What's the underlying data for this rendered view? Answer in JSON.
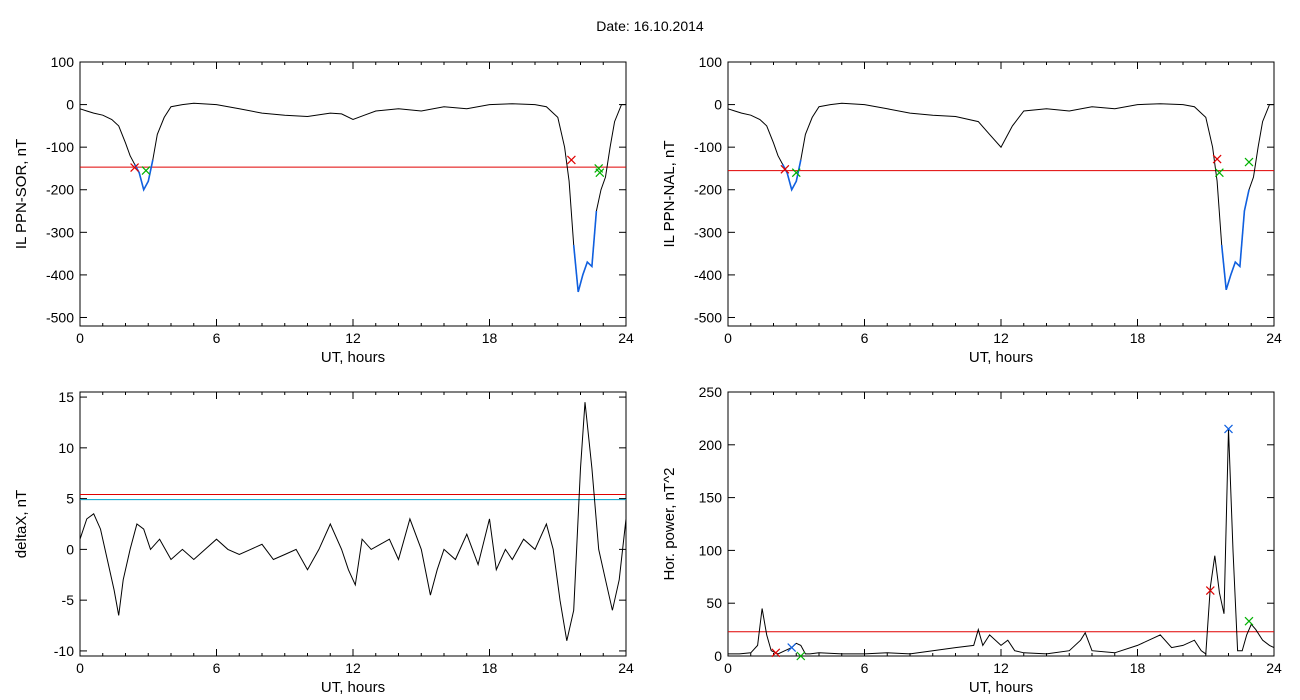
{
  "header": {
    "title": "Date:  16.10.2014"
  },
  "colors": {
    "trace": "#000000",
    "threshold_red": "#e00000",
    "threshold_cyan": "#00a0c8",
    "highlight_blue": "#1060e0",
    "marker_red": "#e00000",
    "marker_green": "#00b000",
    "marker_blue": "#1060e0"
  },
  "chart_data": [
    {
      "id": "ppn-sor",
      "type": "line",
      "xlabel": "UT, hours",
      "ylabel": "IL PPN-SOR, nT",
      "xlim": [
        0,
        24
      ],
      "ylim": [
        -520,
        100
      ],
      "xticks": [
        0,
        6,
        12,
        18,
        24
      ],
      "yticks": [
        100,
        0,
        -100,
        -200,
        -300,
        -400,
        -500
      ],
      "series": [
        {
          "values_x": [
            0,
            0.3,
            0.6,
            1.0,
            1.4,
            1.7,
            2.0,
            2.2,
            2.4,
            2.6,
            2.8,
            3.0,
            3.2,
            3.4,
            3.7,
            4.0,
            4.5,
            5.0,
            6.0,
            7.0,
            8.0,
            9.0,
            10.0,
            11.0,
            11.5,
            12.0,
            12.5,
            13.0,
            14.0,
            15.0,
            16.0,
            17.0,
            18.0,
            19.0,
            20.0,
            20.5,
            21.0,
            21.3,
            21.5,
            21.7,
            21.9,
            22.1,
            22.3,
            22.5,
            22.7,
            22.9,
            23.1,
            23.3,
            23.5,
            23.8,
            24.0
          ],
          "values_y": [
            -10,
            -15,
            -20,
            -25,
            -35,
            -50,
            -90,
            -120,
            -140,
            -160,
            -200,
            -180,
            -130,
            -70,
            -30,
            -5,
            0,
            3,
            0,
            -10,
            -20,
            -25,
            -28,
            -20,
            -22,
            -35,
            -25,
            -15,
            -10,
            -15,
            -5,
            -10,
            0,
            2,
            0,
            -5,
            -30,
            -100,
            -180,
            -330,
            -440,
            -400,
            -370,
            -380,
            -250,
            -200,
            -170,
            -100,
            -40,
            0,
            0
          ]
        }
      ],
      "threshold": -147,
      "highlight_range": [
        2.3,
        3.2
      ],
      "highlight_range_2": [
        21.6,
        22.8
      ],
      "markers": [
        {
          "x": 2.4,
          "y": -148,
          "color": "red"
        },
        {
          "x": 2.9,
          "y": -155,
          "color": "green"
        },
        {
          "x": 21.6,
          "y": -130,
          "color": "red"
        },
        {
          "x": 22.8,
          "y": -150,
          "color": "green"
        },
        {
          "x": 22.85,
          "y": -160,
          "color": "green"
        }
      ]
    },
    {
      "id": "ppn-nal",
      "type": "line",
      "xlabel": "UT, hours",
      "ylabel": "IL PPN-NAL, nT",
      "xlim": [
        0,
        24
      ],
      "ylim": [
        -520,
        100
      ],
      "xticks": [
        0,
        6,
        12,
        18,
        24
      ],
      "yticks": [
        100,
        0,
        -100,
        -200,
        -300,
        -400,
        -500
      ],
      "series": [
        {
          "values_x": [
            0,
            0.3,
            0.6,
            1.0,
            1.4,
            1.7,
            2.0,
            2.2,
            2.4,
            2.6,
            2.8,
            3.0,
            3.2,
            3.4,
            3.7,
            4.0,
            4.5,
            5.0,
            6.0,
            7.0,
            8.0,
            9.0,
            10.0,
            11.0,
            11.5,
            12.0,
            12.5,
            13.0,
            14.0,
            15.0,
            16.0,
            17.0,
            18.0,
            19.0,
            20.0,
            20.5,
            21.0,
            21.3,
            21.5,
            21.7,
            21.9,
            22.1,
            22.3,
            22.5,
            22.7,
            22.9,
            23.1,
            23.3,
            23.5,
            23.8,
            24.0
          ],
          "values_y": [
            -10,
            -15,
            -20,
            -25,
            -35,
            -50,
            -90,
            -120,
            -140,
            -160,
            -200,
            -180,
            -130,
            -70,
            -30,
            -5,
            0,
            3,
            0,
            -10,
            -20,
            -25,
            -28,
            -40,
            -70,
            -100,
            -50,
            -15,
            -10,
            -15,
            -5,
            -10,
            0,
            2,
            0,
            -5,
            -30,
            -100,
            -180,
            -330,
            -435,
            -400,
            -370,
            -380,
            -250,
            -200,
            -170,
            -100,
            -40,
            0,
            0
          ]
        }
      ],
      "threshold": -155,
      "highlight_range": [
        2.4,
        3.2
      ],
      "highlight_range_2": [
        21.6,
        22.9
      ],
      "markers": [
        {
          "x": 2.5,
          "y": -152,
          "color": "red"
        },
        {
          "x": 3.0,
          "y": -160,
          "color": "green"
        },
        {
          "x": 21.5,
          "y": -128,
          "color": "red"
        },
        {
          "x": 21.6,
          "y": -160,
          "color": "green"
        },
        {
          "x": 22.9,
          "y": -135,
          "color": "green"
        }
      ]
    },
    {
      "id": "deltax",
      "type": "line",
      "xlabel": "UT, hours",
      "ylabel": "deltaX, nT",
      "xlim": [
        0,
        24
      ],
      "ylim": [
        -10.5,
        15.5
      ],
      "xticks": [
        0,
        6,
        12,
        18,
        24
      ],
      "yticks": [
        15,
        10,
        5,
        0,
        -5,
        -10
      ],
      "series": [
        {
          "values_x": [
            0,
            0.3,
            0.6,
            0.9,
            1.2,
            1.5,
            1.7,
            1.9,
            2.2,
            2.5,
            2.8,
            3.1,
            3.5,
            4.0,
            4.5,
            5.0,
            5.5,
            6.0,
            6.5,
            7.0,
            7.5,
            8.0,
            8.5,
            9.0,
            9.5,
            10.0,
            10.5,
            11.0,
            11.5,
            11.8,
            12.1,
            12.4,
            12.8,
            13.2,
            13.6,
            14.0,
            14.5,
            15.0,
            15.4,
            15.7,
            16.0,
            16.5,
            17.0,
            17.5,
            18.0,
            18.3,
            18.7,
            19.0,
            19.5,
            20.0,
            20.5,
            20.8,
            21.1,
            21.4,
            21.7,
            22.0,
            22.2,
            22.5,
            22.8,
            23.1,
            23.4,
            23.7,
            24.0
          ],
          "values_y": [
            1,
            3,
            3.5,
            2,
            -1,
            -4,
            -6.5,
            -3,
            0,
            2.5,
            2,
            0,
            1,
            -1,
            0,
            -1,
            0,
            1,
            0,
            -0.5,
            0,
            0.5,
            -1,
            -0.5,
            0,
            -2,
            0,
            2.5,
            0,
            -2,
            -3.5,
            1,
            0,
            0.5,
            1,
            -1,
            3,
            0,
            -4.5,
            -2,
            0,
            -1,
            1.5,
            -1.5,
            3,
            -2,
            0,
            -1,
            1,
            0,
            2.5,
            0,
            -5,
            -9,
            -6,
            8,
            14.5,
            8,
            0,
            -3,
            -6,
            -3,
            3
          ]
        }
      ],
      "threshold_red": 5.4,
      "threshold_cyan": 4.9
    },
    {
      "id": "hor-power",
      "type": "line",
      "xlabel": "UT, hours",
      "ylabel": "Hor. power, nT^2",
      "xlim": [
        0,
        24
      ],
      "ylim": [
        0,
        250
      ],
      "xticks": [
        0,
        6,
        12,
        18,
        24
      ],
      "yticks": [
        250,
        200,
        150,
        100,
        50,
        0
      ],
      "series": [
        {
          "values_x": [
            0,
            0.5,
            1.0,
            1.3,
            1.5,
            1.7,
            1.9,
            2.2,
            2.5,
            2.8,
            3.0,
            3.2,
            3.4,
            3.6,
            4.0,
            5.0,
            6.0,
            7.0,
            8.0,
            9.0,
            10.0,
            10.8,
            11.0,
            11.2,
            11.5,
            12.0,
            12.3,
            12.6,
            13.0,
            14.0,
            15.0,
            15.5,
            15.7,
            16.0,
            17.0,
            18.0,
            19.0,
            19.5,
            20.0,
            20.5,
            20.8,
            21.0,
            21.2,
            21.4,
            21.6,
            21.8,
            22.0,
            22.2,
            22.4,
            22.6,
            22.8,
            23.0,
            23.2,
            23.5,
            23.8,
            24.0
          ],
          "values_y": [
            2,
            2,
            3,
            10,
            45,
            20,
            5,
            2,
            5,
            8,
            12,
            10,
            2,
            2,
            3,
            2,
            2,
            3,
            2,
            5,
            8,
            10,
            25,
            10,
            20,
            10,
            15,
            5,
            3,
            2,
            5,
            15,
            22,
            5,
            3,
            10,
            20,
            8,
            10,
            15,
            5,
            2,
            65,
            95,
            60,
            40,
            215,
            100,
            5,
            5,
            20,
            30,
            25,
            15,
            10,
            8
          ]
        }
      ],
      "threshold": 23,
      "markers": [
        {
          "x": 2.1,
          "y": 3,
          "color": "red"
        },
        {
          "x": 2.8,
          "y": 8,
          "color": "blue"
        },
        {
          "x": 3.2,
          "y": 0,
          "color": "green"
        },
        {
          "x": 21.2,
          "y": 62,
          "color": "red"
        },
        {
          "x": 22.0,
          "y": 215,
          "color": "blue"
        },
        {
          "x": 22.9,
          "y": 33,
          "color": "green"
        }
      ]
    }
  ]
}
